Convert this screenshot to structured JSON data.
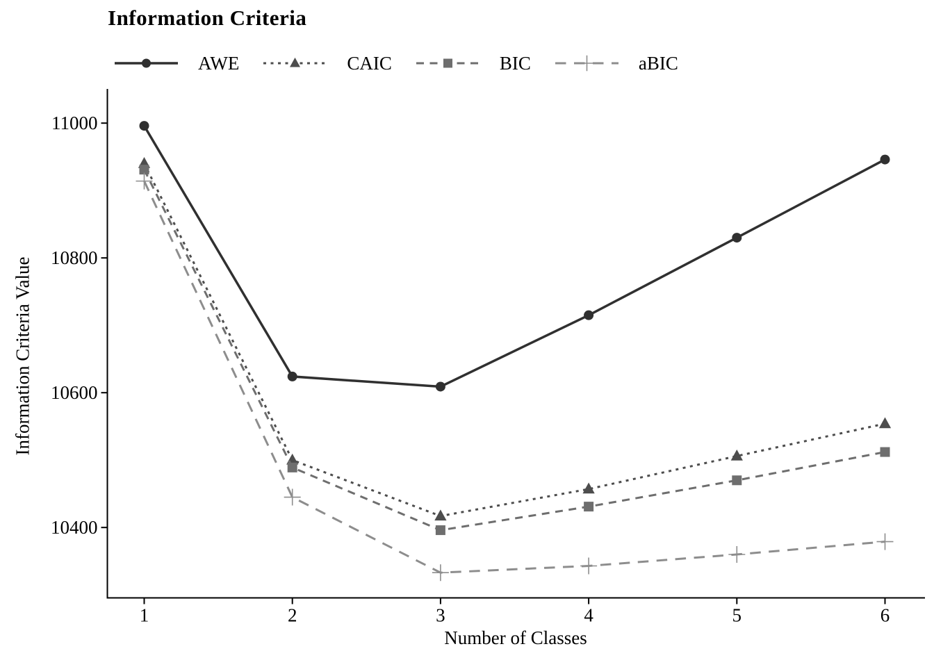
{
  "title": "Information Criteria",
  "axes": {
    "xlabel": "Number of Classes",
    "ylabel": "Information Criteria Value",
    "x_ticks": [
      1,
      2,
      3,
      4,
      5,
      6
    ],
    "y_ticks": [
      10400,
      10600,
      10800,
      11000
    ]
  },
  "colors": {
    "axis": "#000000",
    "text": "#000000",
    "background": "#ffffff"
  },
  "chart_data": {
    "type": "line",
    "title": "Information Criteria",
    "xlabel": "Number of Classes",
    "ylabel": "Information Criteria Value",
    "x": [
      1,
      2,
      3,
      4,
      5,
      6
    ],
    "series": [
      {
        "name": "AWE",
        "values": [
          10996,
          10624,
          10609,
          10715,
          10830,
          10946
        ],
        "color": "#303030",
        "marker": "circle",
        "dash": "solid",
        "line_width": 3.5
      },
      {
        "name": "CAIC",
        "values": [
          10940,
          10500,
          10417,
          10457,
          10506,
          10554
        ],
        "color": "#4d4d4d",
        "marker": "triangle",
        "dash": "dotted",
        "line_width": 3
      },
      {
        "name": "BIC",
        "values": [
          10931,
          10489,
          10396,
          10431,
          10470,
          10512
        ],
        "color": "#6e6e6e",
        "marker": "square",
        "dash": "dashed",
        "line_width": 3
      },
      {
        "name": "aBIC",
        "values": [
          10914,
          10445,
          10333,
          10343,
          10360,
          10379
        ],
        "color": "#8d8d8d",
        "marker": "plus",
        "dash": "longdash",
        "line_width": 3
      }
    ],
    "xlim": [
      0.75,
      6.27
    ],
    "ylim": [
      10296,
      11025
    ],
    "grid": false,
    "legend_position": "top-left"
  }
}
